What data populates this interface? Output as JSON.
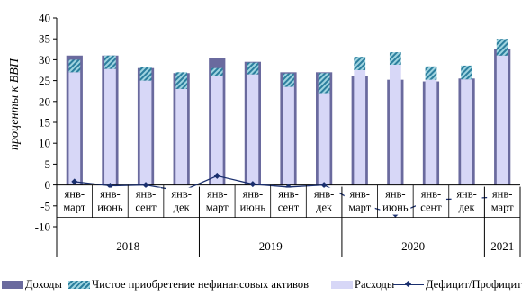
{
  "chart_data": {
    "type": "bar",
    "ylabel": "проценты к ВВП",
    "ylim": [
      -10,
      40
    ],
    "yticks": [
      "40",
      "35",
      "30",
      "25",
      "20",
      "15",
      "10",
      "5",
      "0",
      "-5",
      "-10"
    ],
    "categories": [
      [
        "янв-",
        "март"
      ],
      [
        "янв-",
        "июнь"
      ],
      [
        "янв-",
        "сент"
      ],
      [
        "янв-",
        "дек"
      ],
      [
        "янв-",
        "март"
      ],
      [
        "янв-",
        "июнь"
      ],
      [
        "янв-",
        "сент"
      ],
      [
        "янв-",
        "дек"
      ],
      [
        "янв-",
        "март"
      ],
      [
        "янв-",
        "июнь"
      ],
      [
        "янв-",
        "сент"
      ],
      [
        "янв-",
        "дек"
      ],
      [
        "янв-",
        "март"
      ]
    ],
    "years": [
      {
        "label": "2018",
        "span": 4
      },
      {
        "label": "2019",
        "span": 4
      },
      {
        "label": "2020",
        "span": 4
      },
      {
        "label": "2021",
        "span": 1
      }
    ],
    "series": [
      {
        "name": "Доходы",
        "kind": "bar",
        "color": "#6a6a9e",
        "values": [
          31.0,
          31.0,
          28.0,
          26.8,
          30.5,
          29.5,
          27.0,
          27.0,
          26.0,
          25.2,
          24.8,
          25.5,
          32.5
        ]
      },
      {
        "name": "Чистое приобретение  нефинансовых активов",
        "kind": "stack",
        "values": [
          3.0,
          3.2,
          3.2,
          4.0,
          2.0,
          2.8,
          3.2,
          4.8,
          3.2,
          3.0,
          3.2,
          3.3,
          4.0
        ]
      },
      {
        "name": "Расходы",
        "kind": "bar",
        "color": "#d7d7f7",
        "values": [
          27.0,
          27.8,
          25.0,
          23.0,
          26.0,
          26.5,
          23.5,
          22.0,
          27.5,
          28.8,
          25.2,
          25.3,
          31.0
        ]
      },
      {
        "name": "Дефицит/Профицит",
        "kind": "line",
        "color": "#1a2f6e",
        "values": [
          0.8,
          -0.2,
          0.0,
          -1.5,
          2.2,
          0.2,
          -0.5,
          0.0,
          -4.5,
          -7.0,
          -3.5,
          -3.3,
          -2.8
        ]
      }
    ],
    "grid": false,
    "legend_position": "bottom"
  }
}
